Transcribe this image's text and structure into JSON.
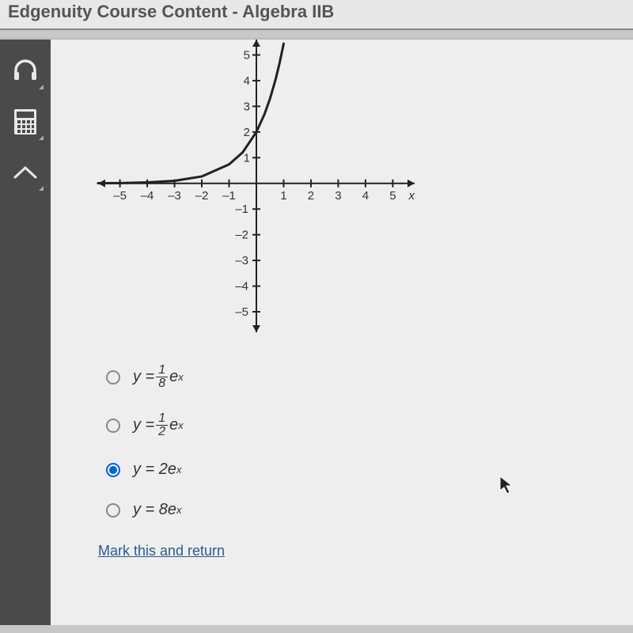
{
  "header": {
    "title": "Edgenuity Course Content - Algebra IIB"
  },
  "sidebar": {
    "icons": [
      "headphones-icon",
      "calculator-icon",
      "collapse-icon"
    ]
  },
  "chart": {
    "type": "line",
    "xlim": [
      -5.8,
      5.8
    ],
    "ylim": [
      -5.8,
      5.6
    ],
    "xticks": [
      -5,
      -4,
      -3,
      -2,
      -1,
      1,
      2,
      3,
      4,
      5
    ],
    "yticks": [
      -5,
      -4,
      -3,
      -2,
      -1,
      1,
      2,
      3,
      4,
      5
    ],
    "axis_labels": {
      "x": "x"
    },
    "curve_points": [
      [
        -5.8,
        0.006
      ],
      [
        -5,
        0.013
      ],
      [
        -4,
        0.037
      ],
      [
        -3,
        0.1
      ],
      [
        -2,
        0.27
      ],
      [
        -1,
        0.74
      ],
      [
        -0.5,
        1.21
      ],
      [
        0,
        2.0
      ],
      [
        0.3,
        2.7
      ],
      [
        0.5,
        3.3
      ],
      [
        0.7,
        4.03
      ],
      [
        0.85,
        4.68
      ],
      [
        1.0,
        5.44
      ]
    ],
    "line_width": 3,
    "line_color": "#222222",
    "axis_color": "#222222",
    "tick_font_size": 15,
    "background_color": "#eeeeee"
  },
  "answers": {
    "options": [
      {
        "label_parts": [
          "y = ",
          {
            "frac": [
              "1",
              "8"
            ]
          },
          "e",
          {
            "sup": "x"
          }
        ],
        "selected": false
      },
      {
        "label_parts": [
          "y = ",
          {
            "frac": [
              "1",
              "2"
            ]
          },
          "e",
          {
            "sup": "x"
          }
        ],
        "selected": false
      },
      {
        "label_parts": [
          "y = 2e",
          {
            "sup": "x"
          }
        ],
        "selected": true
      },
      {
        "label_parts": [
          "y = 8e",
          {
            "sup": "x"
          }
        ],
        "selected": false
      }
    ]
  },
  "footer": {
    "mark_return": "Mark this and return"
  }
}
